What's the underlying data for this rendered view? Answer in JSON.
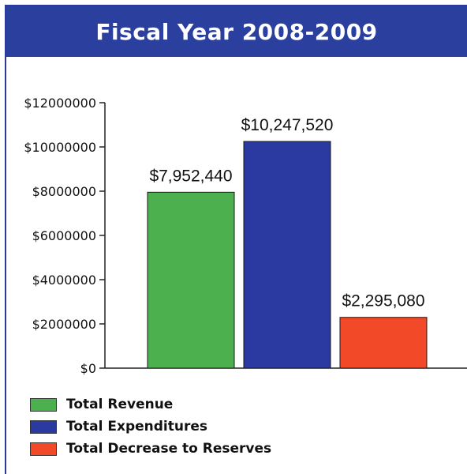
{
  "chart_data": {
    "type": "bar",
    "title": "Fiscal Year 2008-2009",
    "categories": [
      "Total Revenue",
      "Total Expenditures",
      "Total Decrease to Reserves"
    ],
    "values": [
      7952440,
      10247520,
      2295080
    ],
    "data_labels": [
      "$7,952,440",
      "$10,247,520",
      "$2,295,080"
    ],
    "colors": [
      "#4db04f",
      "#2a3aa0",
      "#f24a28"
    ],
    "ylim": [
      0,
      12000000
    ],
    "yticks": [
      0,
      2000000,
      4000000,
      6000000,
      8000000,
      10000000,
      12000000
    ],
    "ytick_labels": [
      "$0",
      "$2000000",
      "$4000000",
      "$6000000",
      "$8000000",
      "$10000000",
      "$12000000"
    ],
    "xlabel": "",
    "ylabel": "",
    "grid": false,
    "legend_position": "bottom-left"
  }
}
